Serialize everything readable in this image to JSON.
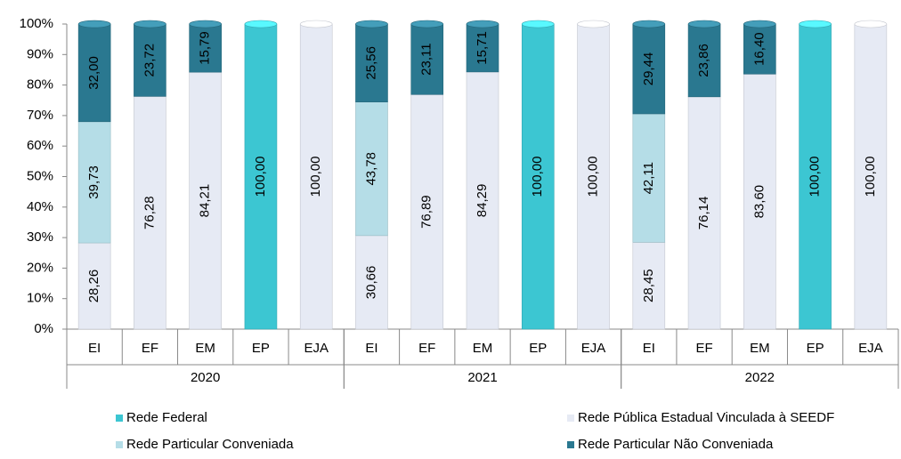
{
  "chart_data": {
    "type": "stacked_bar",
    "categories": [
      "EI",
      "EF",
      "EM",
      "EP",
      "EJA",
      "EI",
      "EF",
      "EM",
      "EP",
      "EJA",
      "EI",
      "EF",
      "EM",
      "EP",
      "EJA"
    ],
    "groups": [
      "2020",
      "2021",
      "2022"
    ],
    "series": [
      {
        "name": "Rede Federal",
        "color": "#3cc6d2",
        "values": [
          null,
          null,
          null,
          100,
          null,
          null,
          null,
          null,
          100,
          null,
          null,
          null,
          null,
          100,
          null
        ],
        "value_labels": [
          null,
          null,
          null,
          "100,00",
          null,
          null,
          null,
          null,
          "100,00",
          null,
          null,
          null,
          null,
          "100,00",
          null
        ]
      },
      {
        "name": "Rede Pública Estadual Vinculada à SEEDF",
        "color": "#e6eaf4",
        "values": [
          28.26,
          76.28,
          84.21,
          null,
          100,
          30.66,
          76.89,
          84.29,
          null,
          100,
          28.45,
          76.14,
          83.6,
          null,
          100
        ],
        "value_labels": [
          "28,26",
          "76,28",
          "84,21",
          null,
          "100,00",
          "30,66",
          "76,89",
          "84,29",
          null,
          "100,00",
          "28,45",
          "76,14",
          "83,60",
          null,
          "100,00"
        ]
      },
      {
        "name": "Rede Particular Conveniada",
        "color": "#b5dde7",
        "values": [
          39.73,
          null,
          null,
          null,
          null,
          43.78,
          null,
          null,
          null,
          null,
          42.11,
          null,
          null,
          null,
          null
        ],
        "value_labels": [
          "39,73",
          null,
          null,
          null,
          null,
          "43,78",
          null,
          null,
          null,
          null,
          "42,11",
          null,
          null,
          null,
          null
        ]
      },
      {
        "name": "Rede Particular Não Conveniada",
        "color": "#2a7890",
        "values": [
          32.0,
          23.72,
          15.79,
          null,
          null,
          25.56,
          23.11,
          15.71,
          null,
          null,
          29.44,
          23.86,
          16.4,
          null,
          null
        ],
        "value_labels": [
          "32,00",
          "23,72",
          "15,79",
          null,
          null,
          "25,56",
          "23,11",
          "15,71",
          null,
          null,
          "29,44",
          "23,86",
          "16,40",
          null,
          null
        ]
      }
    ],
    "ylim": [
      0,
      100
    ],
    "yticks": [
      {
        "value": 0,
        "label": "0%"
      },
      {
        "value": 10,
        "label": "10%"
      },
      {
        "value": 20,
        "label": "20%"
      },
      {
        "value": 30,
        "label": "30%"
      },
      {
        "value": 40,
        "label": "40%"
      },
      {
        "value": 50,
        "label": "50%"
      },
      {
        "value": 60,
        "label": "60%"
      },
      {
        "value": 70,
        "label": "70%"
      },
      {
        "value": 80,
        "label": "80%"
      },
      {
        "value": 90,
        "label": "90%"
      },
      {
        "value": 100,
        "label": "100%"
      }
    ],
    "legend": "bottom"
  }
}
